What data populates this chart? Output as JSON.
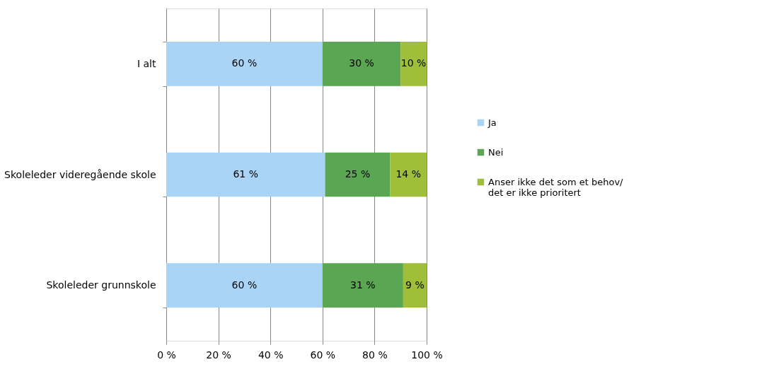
{
  "chart_data": {
    "type": "bar",
    "orientation": "horizontal",
    "stacked": true,
    "categories": [
      "I alt",
      "Skoleleder videregående skole",
      "Skoleleder grunnskole"
    ],
    "series": [
      {
        "name": "Ja",
        "color": "#a9d4f5",
        "values": [
          60,
          61,
          60
        ],
        "value_labels": [
          "60 %",
          "61 %",
          "60 %"
        ]
      },
      {
        "name": "Nei",
        "color": "#5aa653",
        "values": [
          30,
          25,
          31
        ],
        "value_labels": [
          "30 %",
          "25 %",
          "31 %"
        ]
      },
      {
        "name": "Anser ikke det som et behov/ det er ikke prioritert",
        "color": "#9fbf3b",
        "values": [
          10,
          14,
          9
        ],
        "value_labels": [
          "10 %",
          "14 %",
          "9 %"
        ]
      }
    ],
    "xlim": [
      0,
      100
    ],
    "xticks": [
      {
        "value": 0,
        "label": "0 %"
      },
      {
        "value": 20,
        "label": "20 %"
      },
      {
        "value": 40,
        "label": "40 %"
      },
      {
        "value": 60,
        "label": "60 %"
      },
      {
        "value": 80,
        "label": "80 %"
      },
      {
        "value": 100,
        "label": "100 %"
      }
    ],
    "grid": "x",
    "legend": "right"
  }
}
